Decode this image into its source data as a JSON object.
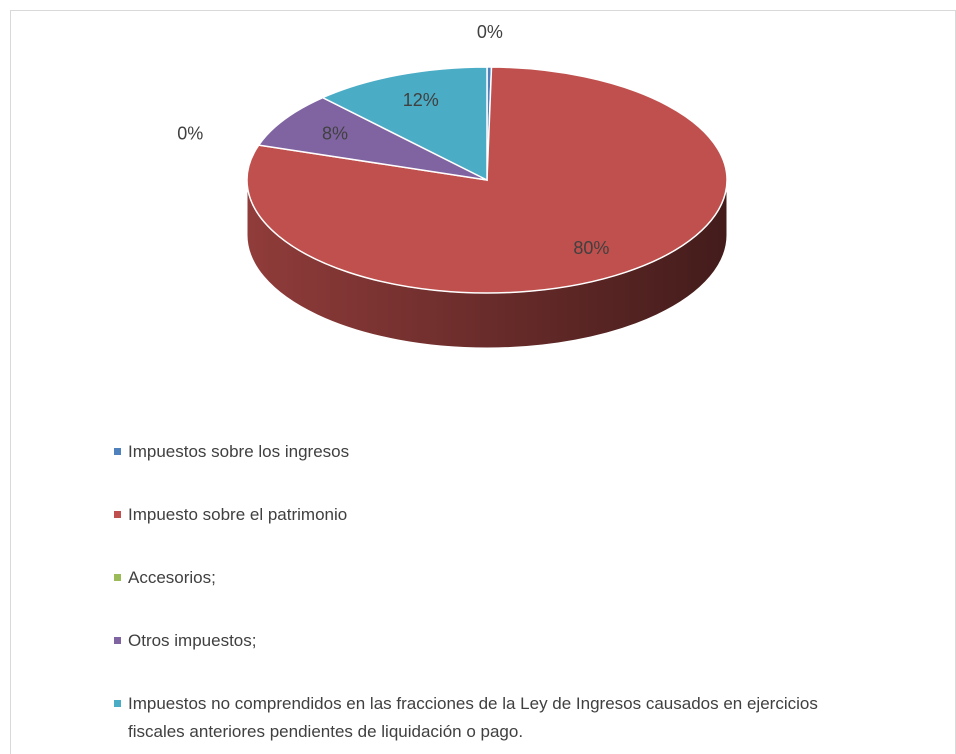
{
  "chart_data": {
    "type": "pie",
    "categories": [
      "Impuestos sobre los ingresos",
      "Impuesto sobre el patrimonio",
      "Accesorios;",
      "Otros impuestos;",
      "Impuestos no comprendidos en las fracciones de la Ley de Ingresos causados en ejercicios fiscales anteriores pendientes de liquidación o pago."
    ],
    "values": [
      0.3,
      79.7,
      0,
      8,
      12
    ],
    "value_labels": [
      "0%",
      "80%",
      "0%",
      "8%",
      "12%"
    ],
    "colors": [
      "#4f81bd",
      "#c0504d",
      "#9bbb59",
      "#8064a2",
      "#4bacc6"
    ],
    "legend": "bottom"
  }
}
